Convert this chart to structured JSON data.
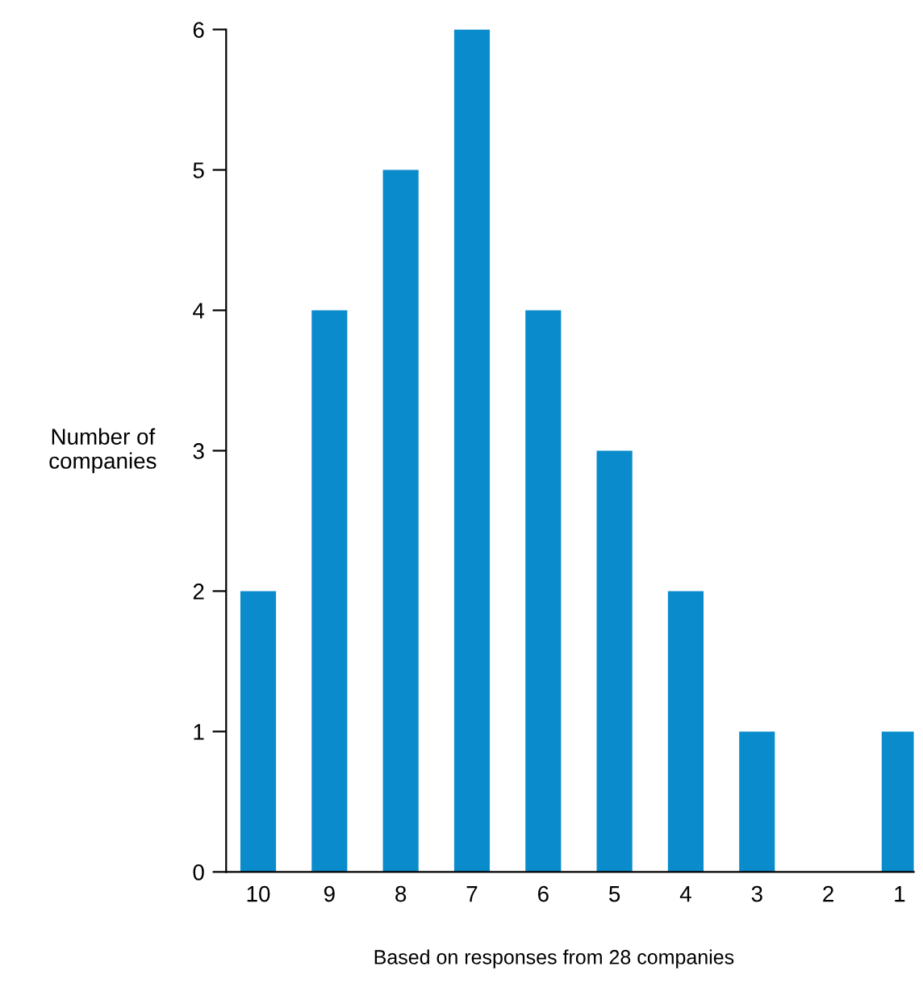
{
  "chart_data": {
    "type": "bar",
    "categories": [
      "10",
      "9",
      "8",
      "7",
      "6",
      "5",
      "4",
      "3",
      "2",
      "1"
    ],
    "values": [
      2,
      4,
      5,
      6,
      4,
      3,
      2,
      1,
      0,
      1
    ],
    "color": "#0a8ccc",
    "ylabel": "Number of\ncompanies",
    "ylim": [
      0,
      6
    ],
    "yticks": [
      0,
      1,
      2,
      3,
      4,
      5,
      6
    ],
    "annotations": [
      "Based on responses from 28 companies"
    ],
    "grid": false,
    "legend": false
  }
}
